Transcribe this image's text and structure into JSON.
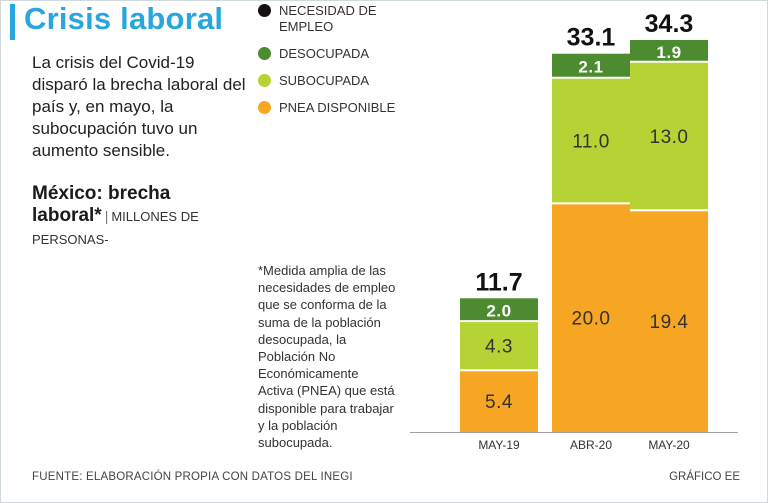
{
  "header": {
    "title": "Crisis laboral",
    "intro": "La crisis del Covid-19 disparó la brecha laboral del país y, en mayo, la subocupación tuvo un aumento sensible.",
    "separator": "|"
  },
  "legend": [
    {
      "label": "NECESIDAD DE EMPLEO",
      "color": "#111111"
    },
    {
      "label": "DESOCUPADA",
      "color": "#4c8b2f"
    },
    {
      "label": "SUBOCUPADA",
      "color": "#b5d334"
    },
    {
      "label": "PNEA DISPONIBLE",
      "color": "#f6a623"
    }
  ],
  "chart_data": {
    "type": "bar",
    "stacked": true,
    "title": "México: brecha laboral*",
    "unit": "MILLONES DE PERSONAS-",
    "footnote": "*Medida amplia de las necesidades de empleo que se conforma de la suma de la población desocupada, la Población No Económicamente Activa (PNEA) que está disponible para trabajar y la población subocupada.",
    "categories": [
      "MAY-19",
      "ABR-20",
      "MAY-20"
    ],
    "series": [
      {
        "name": "PNEA DISPONIBLE",
        "color": "#f6a623",
        "values": [
          5.4,
          20.0,
          19.4
        ]
      },
      {
        "name": "SUBOCUPADA",
        "color": "#b5d334",
        "values": [
          4.3,
          11.0,
          13.0
        ]
      },
      {
        "name": "DESOCUPADA",
        "color": "#4c8b2f",
        "values": [
          2.0,
          2.1,
          1.9
        ]
      }
    ],
    "value_labels": [
      [
        "5.4",
        "4.3",
        "2.0"
      ],
      [
        "20.0",
        "11.0",
        "2.1"
      ],
      [
        "19.4",
        "13.0",
        "1.9"
      ]
    ],
    "totals": [
      11.7,
      33.1,
      34.3
    ],
    "total_labels": [
      "11.7",
      "33.1",
      "34.3"
    ],
    "total_color": "#111111",
    "ylim": [
      0,
      35
    ]
  },
  "footer": {
    "source": "FUENTE: ELABORACIÓN PROPIA CON DATOS DEL INEGI",
    "credit": "GRÁFICO EE"
  }
}
